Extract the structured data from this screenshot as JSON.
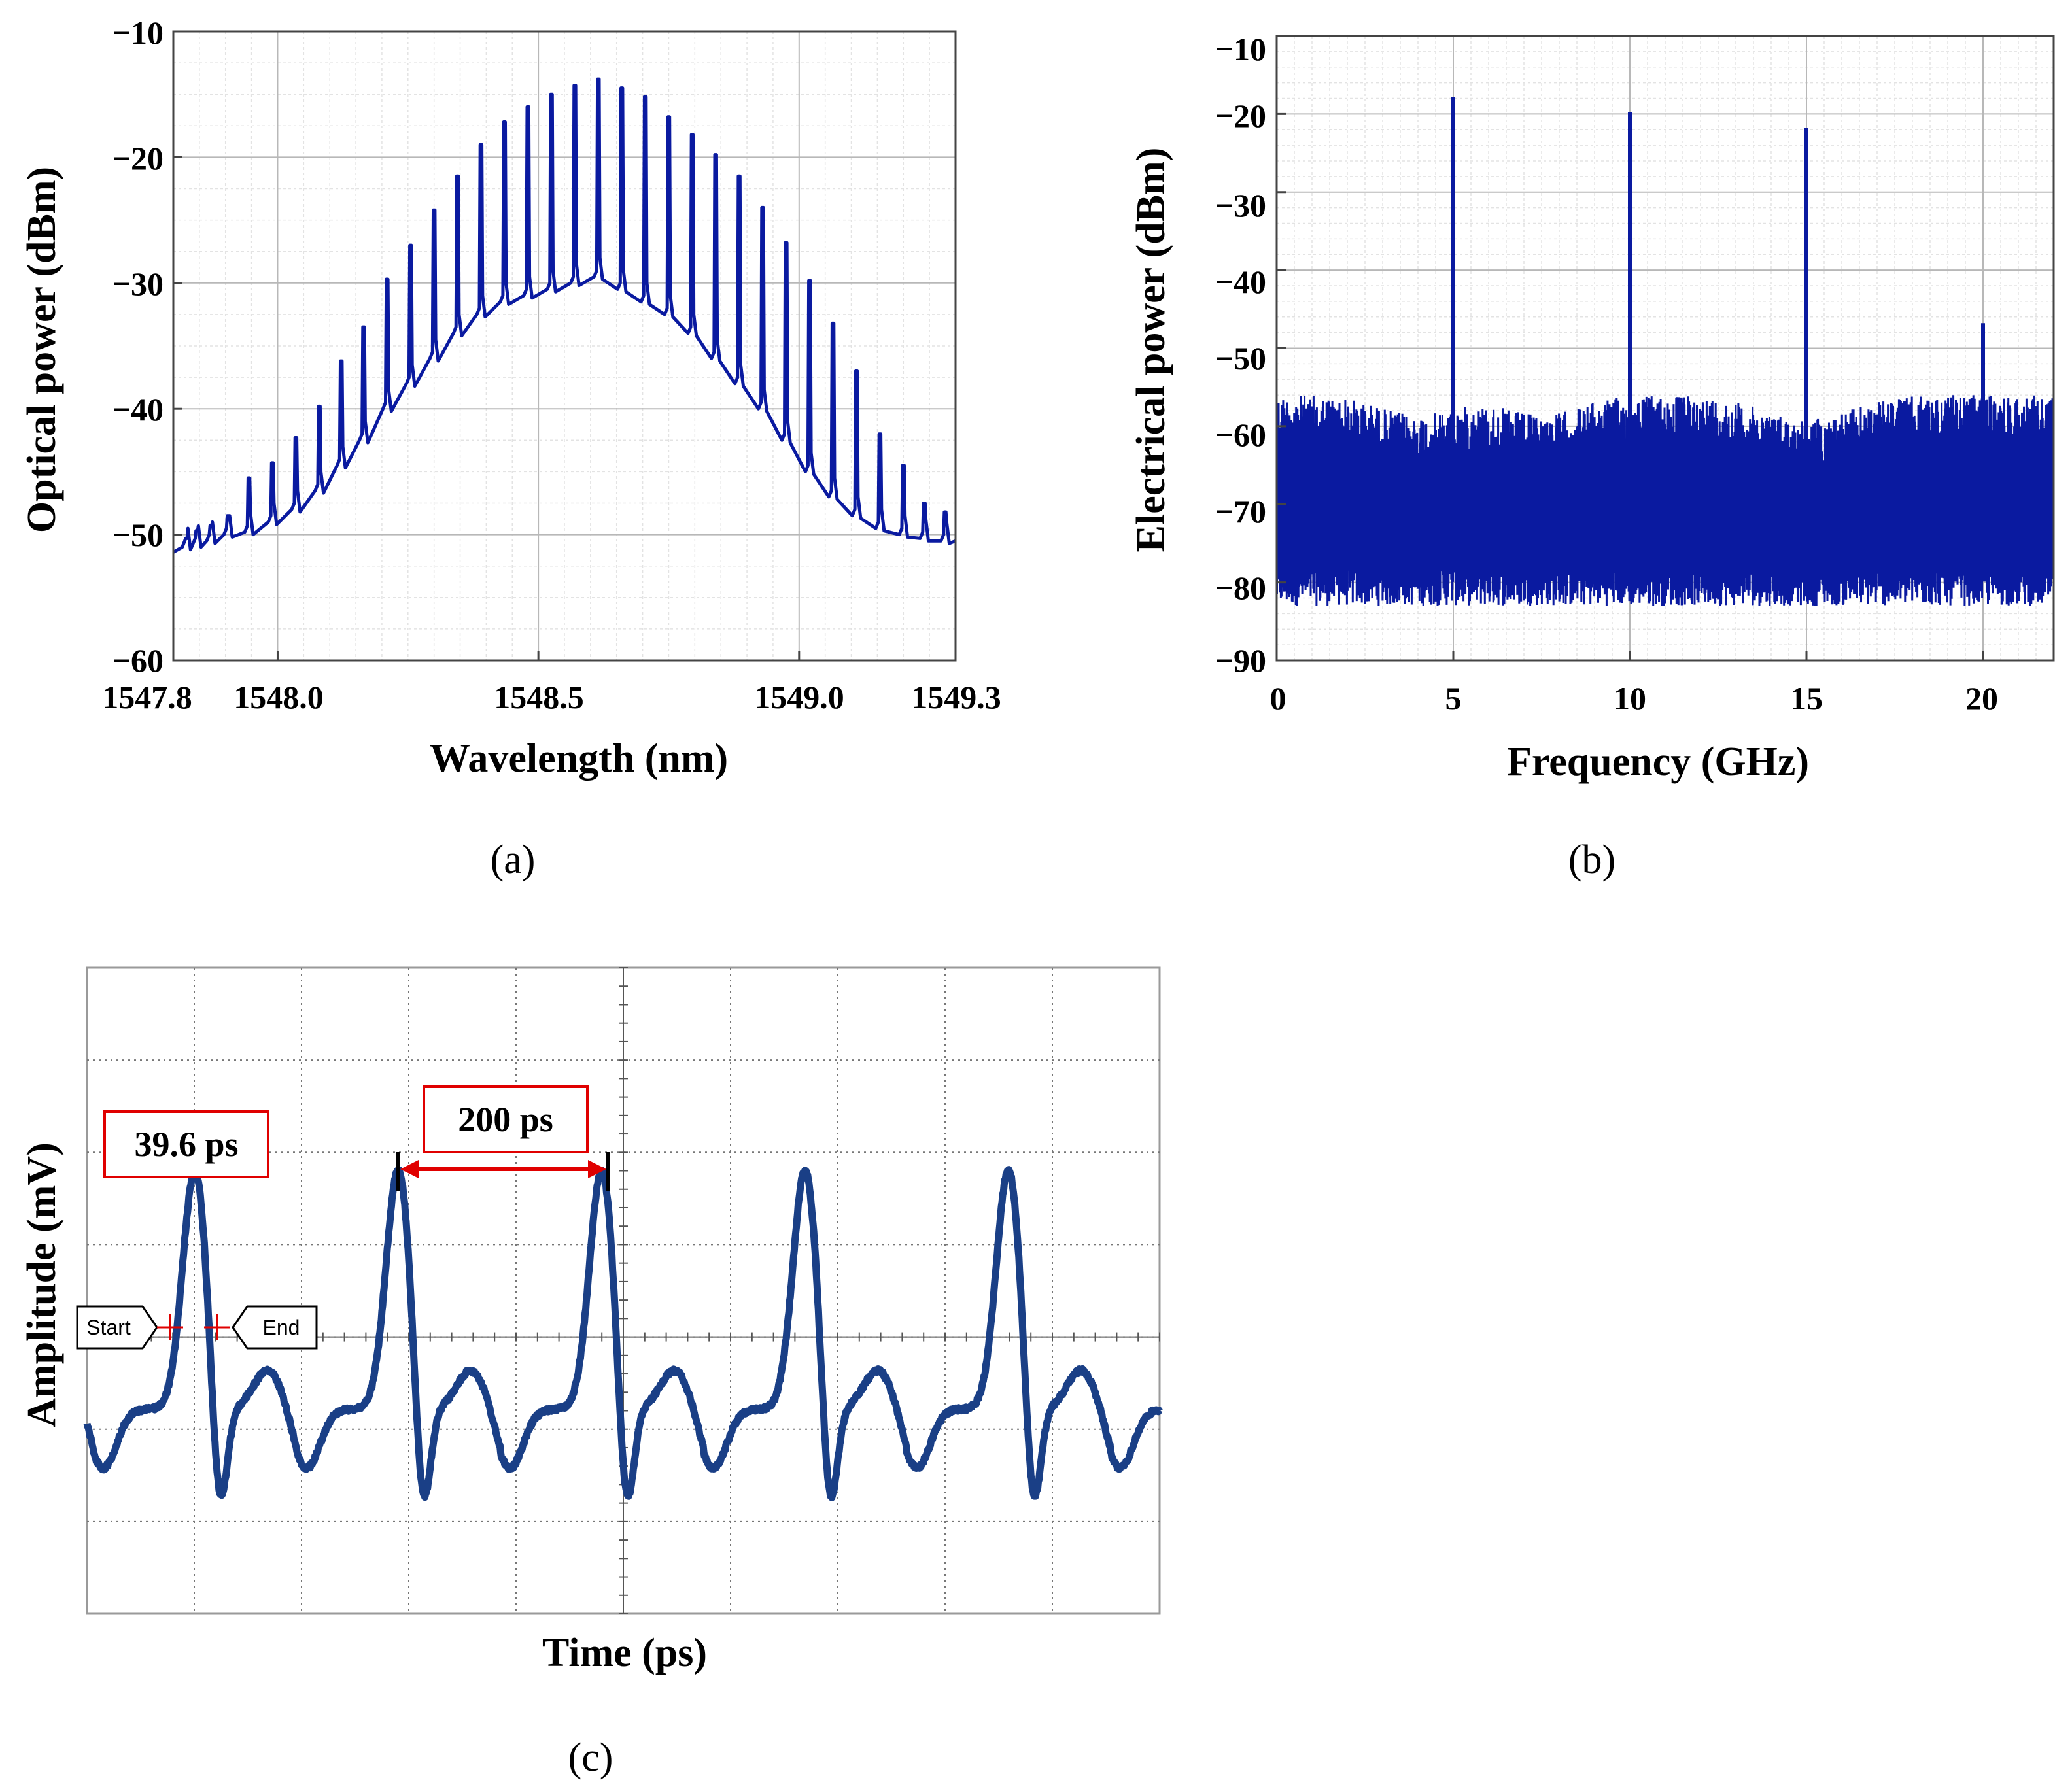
{
  "colors": {
    "trace": "#0a1aa0",
    "trace_c": "#1a3f86",
    "grid": "#c8c8c8",
    "annotation": "#e00000"
  },
  "chart_data": [
    {
      "panel": "a",
      "type": "line",
      "caption": "(a)",
      "xlabel": "Wavelength (nm)",
      "ylabel": "Optical power (dBm)",
      "xlim": [
        1547.8,
        1549.3
      ],
      "ylim": [
        -60,
        -10
      ],
      "xticks": [
        1547.8,
        1548.0,
        1548.5,
        1549.0,
        1549.3
      ],
      "xtick_labels": [
        "1547.8",
        "1548.0",
        "1548.5",
        "1549.0",
        "1549.3"
      ],
      "yticks": [
        -60,
        -50,
        -40,
        -30,
        -20,
        -10
      ],
      "ytick_labels": [
        "−60",
        "−50",
        "−40",
        "−30",
        "−20",
        "−10"
      ],
      "grid": true,
      "comb_lines": {
        "wavelength": [
          1547.825,
          1547.845,
          1547.872,
          1547.905,
          1547.945,
          1547.99,
          1548.035,
          1548.08,
          1548.122,
          1548.165,
          1548.21,
          1548.255,
          1548.3,
          1548.345,
          1548.39,
          1548.435,
          1548.48,
          1548.525,
          1548.57,
          1548.615,
          1548.66,
          1548.705,
          1548.75,
          1548.795,
          1548.84,
          1548.885,
          1548.93,
          1548.975,
          1549.02,
          1549.065,
          1549.11,
          1549.155,
          1549.2,
          1549.24,
          1549.28
        ],
        "peak_dbm": [
          -50.3,
          -49.7,
          -49.3,
          -48.5,
          -45.5,
          -44.3,
          -42.3,
          -39.8,
          -36.2,
          -33.5,
          -29.7,
          -27.0,
          -24.2,
          -21.5,
          -19.0,
          -17.2,
          -16.0,
          -15.0,
          -14.3,
          -13.8,
          -14.5,
          -15.2,
          -16.8,
          -18.2,
          -19.8,
          -21.5,
          -24.0,
          -26.8,
          -29.8,
          -33.2,
          -37.0,
          -42.0,
          -44.5,
          -47.5,
          -48.2
        ],
        "pedestal_dbm": [
          -51.0,
          -50.8,
          -50.5,
          -50.0,
          -49.8,
          -49.0,
          -48.0,
          -46.5,
          -44.5,
          -42.5,
          -40.0,
          -38.0,
          -36.0,
          -34.0,
          -32.5,
          -31.5,
          -31.0,
          -30.5,
          -30.0,
          -29.5,
          -30.5,
          -31.5,
          -32.5,
          -34.0,
          -36.0,
          -38.0,
          -40.0,
          -42.5,
          -45.0,
          -47.0,
          -48.5,
          -49.5,
          -50.0,
          -50.3,
          -50.5
        ]
      }
    },
    {
      "panel": "b",
      "type": "line",
      "caption": "(b)",
      "xlabel": "Frequency (GHz)",
      "ylabel": "Electrical power (dBm)",
      "xlim": [
        0,
        22
      ],
      "ylim": [
        -90,
        -10
      ],
      "xticks": [
        0,
        5,
        10,
        15,
        20
      ],
      "xtick_labels": [
        "0",
        "5",
        "10",
        "15",
        "20"
      ],
      "yticks": [
        -90,
        -80,
        -70,
        -60,
        -50,
        -40,
        -30,
        -20,
        -10
      ],
      "ytick_labels": [
        "−90",
        "−80",
        "−70",
        "−60",
        "−50",
        "−40",
        "−30",
        "−20",
        "−10"
      ],
      "grid": true,
      "noise_floor_dbm": {
        "top": -63,
        "bottom": -82,
        "center": -72
      },
      "peaks": {
        "frequency_ghz": [
          5,
          10,
          15,
          20
        ],
        "power_dbm": [
          -17.8,
          -19.8,
          -21.8,
          -46.8
        ]
      }
    },
    {
      "panel": "c",
      "type": "line",
      "caption": "(c)",
      "xlabel": "Time (ps)",
      "ylabel": "Amplitude (mV)",
      "grid": true,
      "pulse_period_ps": 200,
      "pulse_width_ps": 39.6,
      "pulse_count": 5,
      "annotations": {
        "width_label": "39.6 ps",
        "period_label": "200 ps",
        "start_marker": "Start",
        "end_marker": "End"
      }
    }
  ]
}
